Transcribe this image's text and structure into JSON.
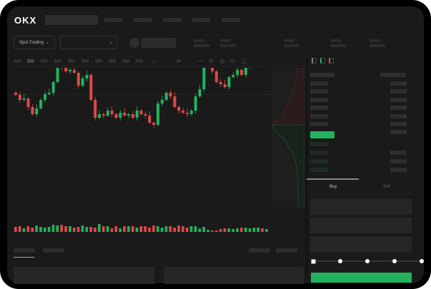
{
  "header": {
    "logo": "OKX",
    "market_selector": "Spot Trading",
    "pair_selector_icon": "chevron-down-icon"
  },
  "orderbook": {
    "view_icons": [
      "orderbook-both-icon",
      "orderbook-buy-icon",
      "orderbook-sell-icon"
    ]
  },
  "trade_panel": {
    "tabs": [
      {
        "label": "Buy"
      },
      {
        "label": "Sell"
      }
    ],
    "slider_percent": 0,
    "slider_stops": 5,
    "colors": {
      "buy": "#22b35e",
      "sell": "#e04848"
    }
  },
  "chart_data": {
    "type": "candlestick",
    "closes": [
      117,
      110,
      112,
      100,
      90,
      98,
      110,
      118,
      120,
      135,
      158,
      155,
      150,
      152,
      148,
      130,
      140,
      145,
      110,
      85,
      90,
      88,
      95,
      90,
      85,
      92,
      88,
      90,
      85,
      95,
      90,
      88,
      78,
      75,
      105,
      110,
      120,
      115,
      100,
      95,
      92,
      90,
      95,
      115,
      125,
      172,
      175,
      150,
      135,
      132,
      128,
      142,
      145,
      152,
      145,
      155,
      160,
      170,
      175,
      165,
      168
    ],
    "first_open": 120,
    "volumes": [
      7,
      8,
      5,
      8,
      6,
      9,
      7,
      6,
      7,
      10,
      9,
      10,
      8,
      8,
      6,
      7,
      9,
      7,
      7,
      6,
      11,
      8,
      8,
      5,
      8,
      5,
      8,
      8,
      8,
      6,
      8,
      8,
      6,
      9,
      8,
      6,
      8,
      8,
      6,
      9,
      8,
      6,
      8,
      8,
      5,
      7,
      3,
      2,
      2,
      4,
      5,
      5,
      4,
      5,
      6,
      6,
      5,
      6,
      6,
      5,
      4
    ]
  }
}
